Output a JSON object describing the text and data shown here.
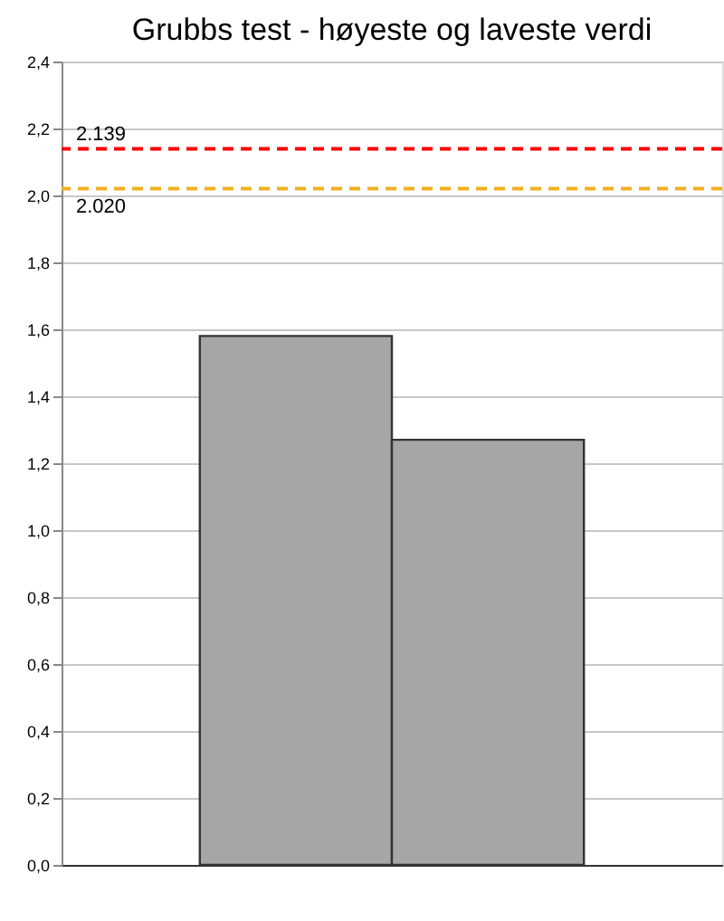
{
  "chart_data": {
    "type": "bar",
    "title": "Grubbs test - høyeste og laveste verdi",
    "categories": [
      null,
      null
    ],
    "values": [
      1.58,
      1.27
    ],
    "color": "#a6a6a6",
    "ylim": [
      0,
      2.4
    ],
    "yticks": [
      {
        "value": 0,
        "label": "0,0"
      },
      {
        "value": 0.2,
        "label": "0,2"
      },
      {
        "value": 0.4,
        "label": "0,4"
      },
      {
        "value": 0.6,
        "label": "0,6"
      },
      {
        "value": 0.8,
        "label": "0,8"
      },
      {
        "value": 1.0,
        "label": "1,0"
      },
      {
        "value": 1.2,
        "label": "1,2"
      },
      {
        "value": 1.4,
        "label": "1,4"
      },
      {
        "value": 1.6,
        "label": "1,6"
      },
      {
        "value": 1.8,
        "label": "1,8"
      },
      {
        "value": 2.0,
        "label": "2,0"
      },
      {
        "value": 2.2,
        "label": "2,2"
      },
      {
        "value": 2.4,
        "label": "2,4"
      }
    ],
    "ref_lines": [
      {
        "axis": "y",
        "value": 2.139,
        "label": "2.139",
        "color": "#ff0000",
        "line_style": "dashed"
      },
      {
        "axis": "y",
        "value": 2.02,
        "label": "2.020",
        "color": "#f0b020",
        "line_style": "dashed"
      }
    ],
    "grid": "y",
    "tick_labels": "y"
  }
}
